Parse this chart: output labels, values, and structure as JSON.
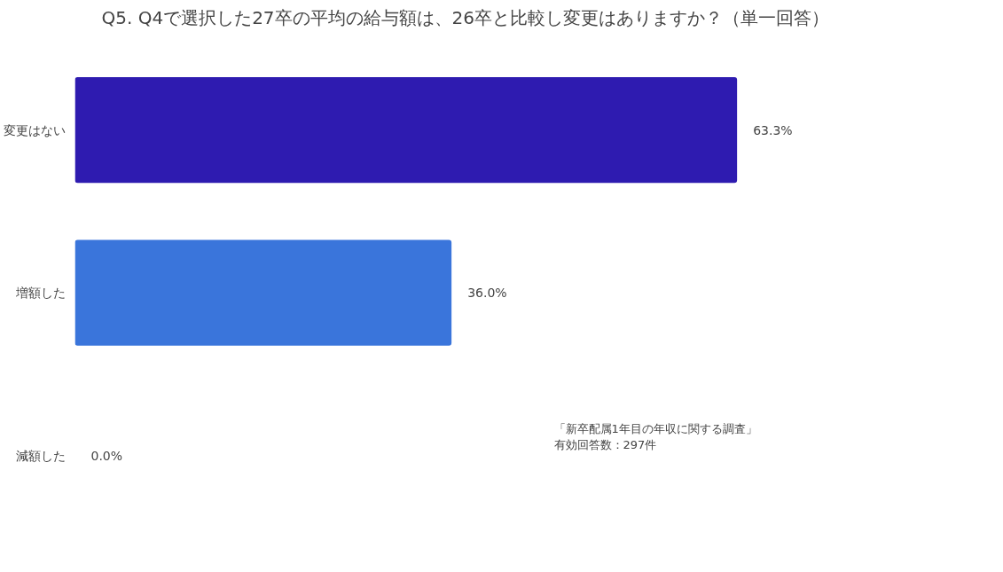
{
  "chart_data": {
    "type": "bar",
    "orientation": "horizontal",
    "title": "Q5. Q4で選択した27卒の平均の給与額は、26卒と比較し変更はありますか？（単一回答）",
    "categories": [
      "変更はない",
      "増額した",
      "減額した"
    ],
    "values": [
      63.3,
      36.0,
      0.0
    ],
    "colors": [
      "#2e1bb0",
      "#3a75db",
      "#3a75db"
    ],
    "value_labels": [
      "63.3%",
      "36.0%",
      "0.0%"
    ],
    "annotations": [
      "「新卒配属1年目の年収に関する調査」",
      "有効回答数：297件"
    ],
    "grid": false
  }
}
